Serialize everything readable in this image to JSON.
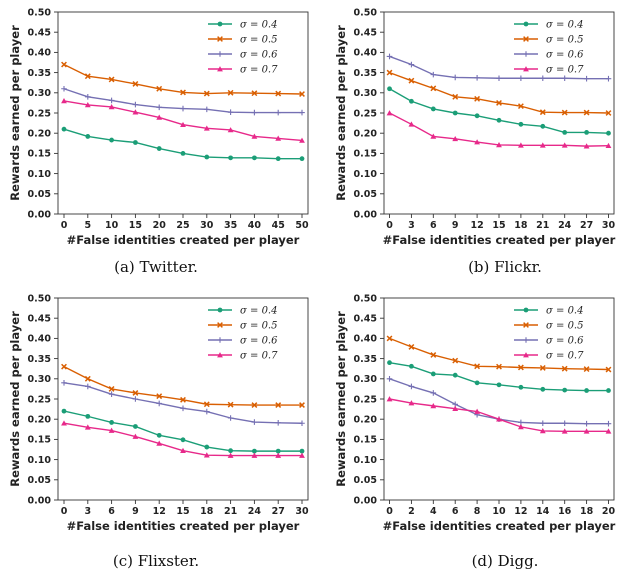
{
  "chart_data": [
    {
      "type": "line",
      "caption": "(a) Twitter.",
      "xlabel": "#False identities created per player",
      "ylabel": "Rewards earned per player",
      "x": [
        0,
        5,
        10,
        15,
        20,
        25,
        30,
        35,
        40,
        45,
        50
      ],
      "xticks": [
        "0",
        "5",
        "10",
        "15",
        "20",
        "25",
        "30",
        "35",
        "40",
        "45",
        "50"
      ],
      "xlim": [
        0,
        50
      ],
      "ylim": [
        0,
        0.5
      ],
      "yticks": [
        "0.00",
        "0.05",
        "0.10",
        "0.15",
        "0.20",
        "0.25",
        "0.30",
        "0.35",
        "0.40",
        "0.45",
        "0.50"
      ],
      "legend_position": "top-right",
      "series": [
        {
          "name": "σ = 0.4",
          "color": "#1b9e77",
          "marker": "circle",
          "values": [
            0.21,
            0.192,
            0.183,
            0.177,
            0.162,
            0.15,
            0.141,
            0.139,
            0.139,
            0.137,
            0.137
          ]
        },
        {
          "name": "σ = 0.5",
          "color": "#d95f02",
          "marker": "x",
          "values": [
            0.37,
            0.341,
            0.333,
            0.322,
            0.31,
            0.301,
            0.298,
            0.3,
            0.299,
            0.298,
            0.297
          ]
        },
        {
          "name": "σ = 0.6",
          "color": "#7570b3",
          "marker": "plus",
          "values": [
            0.31,
            0.29,
            0.281,
            0.271,
            0.264,
            0.261,
            0.259,
            0.252,
            0.251,
            0.251,
            0.251
          ]
        },
        {
          "name": "σ = 0.7",
          "color": "#e7298a",
          "marker": "triangle",
          "values": [
            0.28,
            0.27,
            0.265,
            0.252,
            0.239,
            0.221,
            0.212,
            0.208,
            0.192,
            0.187,
            0.182
          ]
        }
      ]
    },
    {
      "type": "line",
      "caption": "(b) Flickr.",
      "xlabel": "#False identities created per player",
      "ylabel": "Rewards earned per player",
      "x": [
        0,
        3,
        6,
        9,
        12,
        15,
        18,
        21,
        24,
        27,
        30
      ],
      "xticks": [
        "0",
        "3",
        "6",
        "9",
        "12",
        "15",
        "18",
        "21",
        "24",
        "27",
        "30"
      ],
      "xlim": [
        0,
        30
      ],
      "ylim": [
        0,
        0.5
      ],
      "yticks": [
        "0.00",
        "0.05",
        "0.10",
        "0.15",
        "0.20",
        "0.25",
        "0.30",
        "0.35",
        "0.40",
        "0.45",
        "0.50"
      ],
      "legend_position": "top-right",
      "series": [
        {
          "name": "σ = 0.4",
          "color": "#1b9e77",
          "marker": "circle",
          "values": [
            0.31,
            0.279,
            0.26,
            0.25,
            0.243,
            0.232,
            0.222,
            0.217,
            0.202,
            0.202,
            0.2
          ]
        },
        {
          "name": "σ = 0.5",
          "color": "#d95f02",
          "marker": "x",
          "values": [
            0.35,
            0.33,
            0.311,
            0.29,
            0.285,
            0.275,
            0.267,
            0.252,
            0.251,
            0.251,
            0.25
          ]
        },
        {
          "name": "σ = 0.6",
          "color": "#7570b3",
          "marker": "plus",
          "values": [
            0.39,
            0.37,
            0.345,
            0.338,
            0.337,
            0.336,
            0.336,
            0.336,
            0.336,
            0.335,
            0.335
          ]
        },
        {
          "name": "σ = 0.7",
          "color": "#e7298a",
          "marker": "triangle",
          "values": [
            0.25,
            0.222,
            0.192,
            0.186,
            0.178,
            0.171,
            0.17,
            0.17,
            0.17,
            0.168,
            0.169
          ]
        }
      ]
    },
    {
      "type": "line",
      "caption": "(c) Flixster.",
      "xlabel": "#False identities created per player",
      "ylabel": "Rewards earned per player",
      "x": [
        0,
        3,
        6,
        9,
        12,
        15,
        18,
        21,
        24,
        27,
        30
      ],
      "xticks": [
        "0",
        "3",
        "6",
        "9",
        "12",
        "15",
        "18",
        "21",
        "24",
        "27",
        "30"
      ],
      "xlim": [
        0,
        30
      ],
      "ylim": [
        0,
        0.5
      ],
      "yticks": [
        "0.00",
        "0.05",
        "0.10",
        "0.15",
        "0.20",
        "0.25",
        "0.30",
        "0.35",
        "0.40",
        "0.45",
        "0.50"
      ],
      "legend_position": "top-right",
      "series": [
        {
          "name": "σ = 0.4",
          "color": "#1b9e77",
          "marker": "circle",
          "values": [
            0.22,
            0.207,
            0.192,
            0.182,
            0.16,
            0.149,
            0.131,
            0.122,
            0.121,
            0.121,
            0.121
          ]
        },
        {
          "name": "σ = 0.5",
          "color": "#d95f02",
          "marker": "x",
          "values": [
            0.33,
            0.3,
            0.275,
            0.265,
            0.257,
            0.248,
            0.237,
            0.236,
            0.235,
            0.235,
            0.235
          ]
        },
        {
          "name": "σ = 0.6",
          "color": "#7570b3",
          "marker": "plus",
          "values": [
            0.29,
            0.281,
            0.262,
            0.25,
            0.239,
            0.227,
            0.219,
            0.203,
            0.193,
            0.191,
            0.19
          ]
        },
        {
          "name": "σ = 0.7",
          "color": "#e7298a",
          "marker": "triangle",
          "values": [
            0.19,
            0.18,
            0.172,
            0.157,
            0.14,
            0.122,
            0.111,
            0.11,
            0.11,
            0.11,
            0.11
          ]
        }
      ]
    },
    {
      "type": "line",
      "caption": "(d) Digg.",
      "xlabel": "#False identities created per player",
      "ylabel": "Rewards earned per player",
      "x": [
        0,
        2,
        4,
        6,
        8,
        10,
        12,
        14,
        16,
        18,
        20
      ],
      "xticks": [
        "0",
        "2",
        "4",
        "6",
        "8",
        "10",
        "12",
        "14",
        "16",
        "18",
        "20"
      ],
      "xlim": [
        0,
        20
      ],
      "ylim": [
        0,
        0.5
      ],
      "yticks": [
        "0.00",
        "0.05",
        "0.10",
        "0.15",
        "0.20",
        "0.25",
        "0.30",
        "0.35",
        "0.40",
        "0.45",
        "0.50"
      ],
      "legend_position": "top-right",
      "series": [
        {
          "name": "σ = 0.4",
          "color": "#1b9e77",
          "marker": "circle",
          "values": [
            0.34,
            0.331,
            0.312,
            0.309,
            0.29,
            0.285,
            0.279,
            0.274,
            0.272,
            0.271,
            0.271
          ]
        },
        {
          "name": "σ = 0.5",
          "color": "#d95f02",
          "marker": "x",
          "values": [
            0.4,
            0.379,
            0.359,
            0.345,
            0.331,
            0.33,
            0.328,
            0.327,
            0.325,
            0.324,
            0.323
          ]
        },
        {
          "name": "σ = 0.6",
          "color": "#7570b3",
          "marker": "plus",
          "values": [
            0.3,
            0.281,
            0.265,
            0.237,
            0.211,
            0.2,
            0.192,
            0.19,
            0.19,
            0.189,
            0.189
          ]
        },
        {
          "name": "σ = 0.7",
          "color": "#e7298a",
          "marker": "triangle",
          "values": [
            0.25,
            0.24,
            0.233,
            0.226,
            0.219,
            0.2,
            0.181,
            0.171,
            0.17,
            0.17,
            0.17
          ]
        }
      ]
    }
  ]
}
